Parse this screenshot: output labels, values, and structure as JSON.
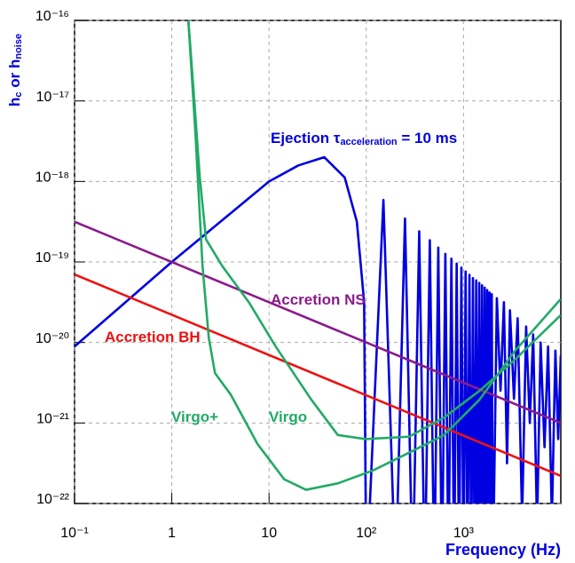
{
  "chart_data": {
    "type": "line",
    "x_label": "Frequency (Hz)",
    "y_label": [
      "h",
      "c",
      " or h",
      "noise"
    ],
    "xscale": "log",
    "yscale": "log",
    "grid": true,
    "xlim": [
      0.1,
      10000
    ],
    "ylim": [
      1e-22,
      1e-16
    ],
    "xticks": [
      {
        "value": 0.1,
        "label": "10⁻¹"
      },
      1,
      10,
      {
        "value": 100,
        "label": "10²"
      },
      {
        "value": 1000,
        "label": "10³"
      }
    ],
    "yticks": [
      {
        "value": 1e-22,
        "label": "10⁻²²"
      },
      {
        "value": 1e-21,
        "label": "10⁻²¹"
      },
      {
        "value": 1e-20,
        "label": "10⁻²⁰"
      },
      {
        "value": 1e-19,
        "label": "10⁻¹⁹"
      },
      {
        "value": 1e-18,
        "label": "10⁻¹⁸"
      },
      {
        "value": 1e-17,
        "label": "10⁻¹⁷"
      },
      {
        "value": 1e-16,
        "label": "10⁻¹⁶"
      }
    ],
    "annotations": [
      {
        "parts": [
          "Ejection τ",
          "acceleration",
          " = 10 ms"
        ],
        "color": "#0000e0"
      },
      {
        "parts": [
          "Accretion NS"
        ],
        "color": "#8b1a8b"
      },
      {
        "parts": [
          "Accretion BH"
        ],
        "color": "#ee1111"
      },
      {
        "parts": [
          "Virgo+"
        ],
        "color": "#22aa66"
      },
      {
        "parts": [
          "Virgo"
        ],
        "color": "#22aa66"
      }
    ],
    "series": [
      {
        "color": "#0000e0",
        "x": [
          0.1,
          1,
          10,
          20,
          37,
          60,
          80,
          95,
          100,
          150,
          200,
          250,
          300,
          350,
          400,
          450,
          500,
          550,
          600,
          650,
          700,
          750,
          800,
          850,
          900,
          950,
          1000,
          1050,
          1100,
          1150,
          1200,
          1250,
          1300,
          1350,
          1400,
          1450,
          1500,
          1550,
          1600,
          1650,
          1700,
          1750,
          1800,
          1850,
          1900,
          1950,
          2000,
          2200,
          2400,
          2600,
          2800,
          3000,
          3300,
          3600,
          4000,
          4400,
          4800,
          5200,
          5700,
          6200,
          6800,
          7400,
          8100,
          8800,
          9400,
          10000
        ],
        "values": [
          8.91e-21,
          1e-19,
          1e-18,
          1.58e-18,
          2e-18,
          1.12e-18,
          3.16e-19,
          3.16e-20,
          1e-23,
          5.89e-19,
          1e-23,
          3.47e-19,
          1e-23,
          2.4e-19,
          1e-23,
          1.86e-19,
          1e-23,
          1.51e-19,
          1e-23,
          1.26e-19,
          1e-23,
          1.1e-19,
          1e-23,
          9.55e-20,
          1e-23,
          8.51e-20,
          1e-23,
          7.59e-20,
          1e-23,
          6.92e-20,
          1e-23,
          6.31e-20,
          1e-23,
          5.89e-20,
          1e-23,
          5.5e-20,
          1e-23,
          5.13e-20,
          1e-23,
          4.79e-20,
          1e-23,
          4.47e-20,
          1e-23,
          4.17e-20,
          1e-23,
          3.98e-20,
          1e-23,
          3.55e-20,
          2.51e-21,
          3.16e-20,
          3.16e-22,
          2.51e-20,
          2e-21,
          2e-20,
          6.31e-23,
          1.58e-20,
          1e-21,
          1.26e-20,
          5e-23,
          1e-20,
          5e-22,
          8.91e-21,
          6.31e-23,
          7.94e-21,
          6.31e-22,
          6.92e-21
        ]
      },
      {
        "color": "#8b1a8b",
        "x": [
          0.1,
          10000
        ],
        "values": [
          3.16e-19,
          1e-21
        ]
      },
      {
        "color": "#ee1111",
        "x": [
          0.1,
          10000
        ],
        "values": [
          7e-20,
          2.2e-22
        ]
      },
      {
        "color": "#22aa66",
        "x": [
          1.48,
          1.75,
          2.07,
          2.4,
          2.78,
          4.05,
          7.6,
          14.3,
          24,
          51,
          117,
          275,
          630,
          1460,
          3400,
          10000
        ],
        "values": [
          1e-16,
          3.98e-18,
          8.91e-20,
          1.15e-20,
          4.17e-21,
          2.24e-21,
          5.5e-22,
          2e-22,
          1.48e-22,
          1.78e-22,
          2.57e-22,
          4.27e-22,
          7.08e-22,
          1.95e-21,
          7.94e-21,
          3.47e-20
        ]
      },
      {
        "color": "#22aa66",
        "x": [
          1.48,
          1.67,
          1.94,
          2.25,
          3.3,
          6.2,
          11.7,
          27.2,
          51,
          98,
          275,
          630,
          1460,
          3400,
          10000
        ],
        "values": [
          1e-16,
          1.41e-17,
          1.12e-18,
          1.91e-19,
          8.91e-20,
          3.16e-20,
          8.91e-21,
          1.95e-21,
          7.08e-22,
          6.31e-22,
          6.76e-22,
          1.17e-21,
          2.51e-21,
          6.17e-21,
          2.19e-20
        ]
      }
    ]
  }
}
